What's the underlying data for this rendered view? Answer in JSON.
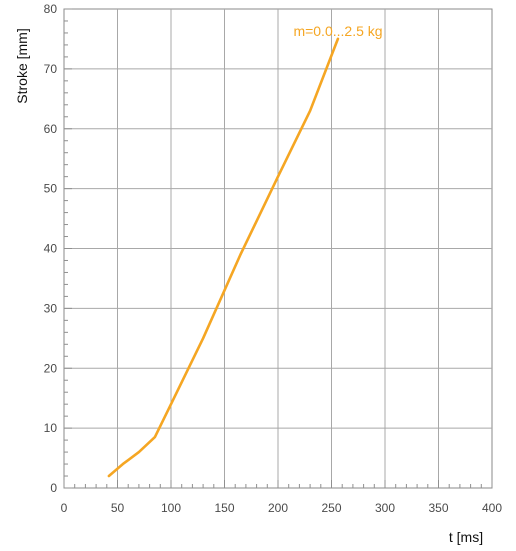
{
  "chart_data": {
    "type": "line",
    "title": "",
    "xlabel": "t [ms]",
    "ylabel": "Stroke [mm]",
    "xlim": [
      0,
      400
    ],
    "ylim": [
      0,
      80
    ],
    "x_ticks": [
      0,
      50,
      100,
      150,
      200,
      250,
      300,
      350,
      400
    ],
    "y_ticks": [
      0,
      10,
      20,
      30,
      40,
      50,
      60,
      70,
      80
    ],
    "grid": true,
    "legend_position": "top-right",
    "series": [
      {
        "name": "m=0.0...2.5 kg",
        "color": "#f5a623",
        "x": [
          42,
          55,
          70,
          85,
          100,
          130,
          165,
          200,
          230,
          256
        ],
        "y": [
          2,
          4,
          6,
          8.5,
          14,
          25,
          39,
          52,
          63,
          75
        ]
      }
    ]
  },
  "colors": {
    "grid": "#a8a8a8",
    "minor_tick": "#8f8f8f",
    "axis": "#8a8a8a",
    "line": "#f5a623"
  }
}
